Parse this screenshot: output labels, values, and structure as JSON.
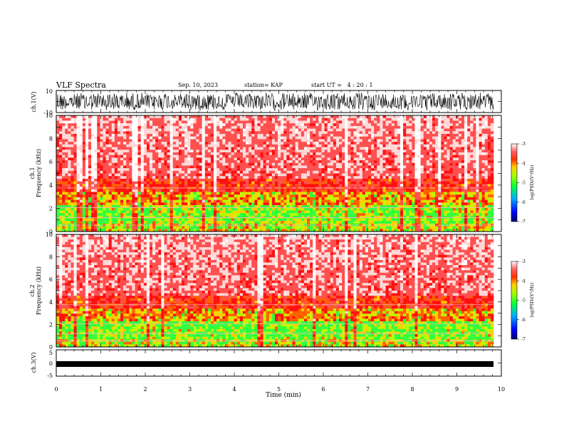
{
  "header": {
    "title": "VLF Spectra",
    "date": "Sep. 10, 2023",
    "station": "station= KAP",
    "start_ut": "start UT =   4 : 20 : 1"
  },
  "chart_data": [
    {
      "type": "line",
      "panel": "ch1-waveform",
      "ylabel": "ch.1(V)",
      "ylim": [
        -10,
        10
      ],
      "yticks": [
        "10",
        "-10"
      ],
      "xlim": [
        0,
        10
      ],
      "grid": false
    },
    {
      "type": "heatmap",
      "panel": "ch1-spectrogram",
      "ylabel_top": "ch.1",
      "ylabel": "Frequency (kHz)",
      "ylim": [
        0,
        10
      ],
      "yticks": [
        "0",
        "2",
        "4",
        "6",
        "8",
        "10"
      ],
      "xlim": [
        0,
        10
      ],
      "colorbar": {
        "label": "log(PSD)(V²/Hz)",
        "range": [
          -7,
          -3
        ],
        "ticks": [
          "-3",
          "-4",
          "-5",
          "-6",
          "-7"
        ]
      }
    },
    {
      "type": "heatmap",
      "panel": "ch2-spectrogram",
      "ylabel_top": "ch.2",
      "ylabel": "Frequency (kHz)",
      "ylim": [
        0,
        10
      ],
      "yticks": [
        "0",
        "2",
        "4",
        "6",
        "8",
        "10"
      ],
      "xlim": [
        0,
        10
      ],
      "colorbar": {
        "label": "log(PSD)(V²/Hz)",
        "range": [
          -7,
          -3
        ],
        "ticks": [
          "-3",
          "-4",
          "-5",
          "-6",
          "-7"
        ]
      }
    },
    {
      "type": "line",
      "panel": "ch3-waveform",
      "ylabel": "ch.3(V)",
      "ylim": [
        -5,
        5
      ],
      "yticks": [
        "5",
        "0",
        "-5"
      ],
      "xlim": [
        0,
        10
      ],
      "xlabel": "Time (min)",
      "xticks": [
        "0",
        "1",
        "2",
        "3",
        "4",
        "5",
        "6",
        "7",
        "8",
        "9",
        "10"
      ],
      "grid": false
    }
  ],
  "colors": {
    "background": "#ffffff",
    "axes": "#000000",
    "colormap": [
      "#000080",
      "#0000ff",
      "#00c0ff",
      "#00ff60",
      "#c0ff00",
      "#ffd000",
      "#ff4000",
      "#ff0000",
      "#ffffff"
    ]
  }
}
